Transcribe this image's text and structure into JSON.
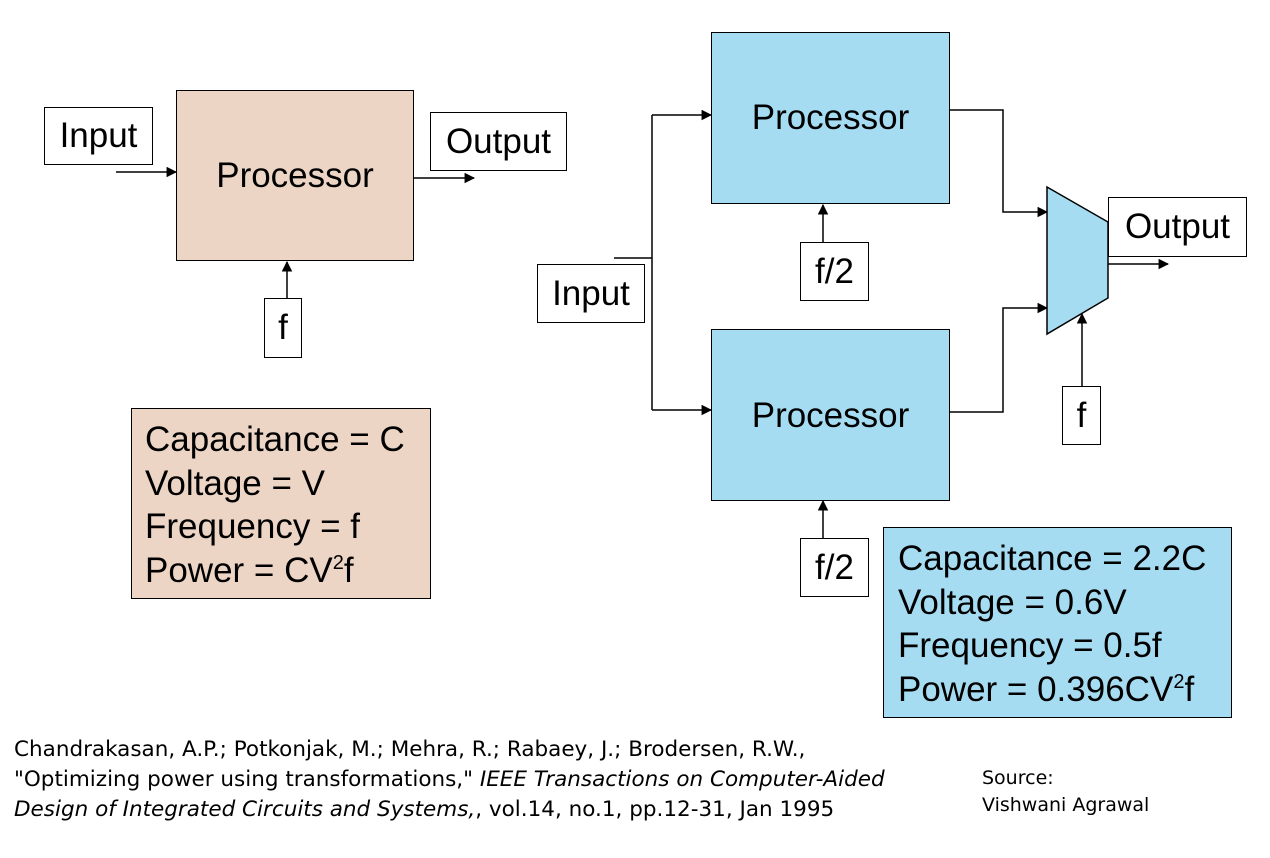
{
  "left": {
    "input_label": "Input",
    "processor_label": "Processor",
    "output_label": "Output",
    "clock_label": "f",
    "specs": {
      "capacitance": "Capacitance = C",
      "voltage": "Voltage = V",
      "frequency": "Frequency = f",
      "power_prefix": "Power = CV",
      "power_sup": "2",
      "power_suffix": "f"
    }
  },
  "right": {
    "input_label": "Input",
    "processor_top_label": "Processor",
    "processor_bottom_label": "Processor",
    "clock_top_label": "f/2",
    "clock_bottom_label": "f/2",
    "mux_clock_label": "f",
    "output_label": "Output",
    "specs": {
      "capacitance": "Capacitance = 2.2C",
      "voltage": "Voltage = 0.6V",
      "frequency": "Frequency = 0.5f",
      "power_prefix": "Power = 0.396CV",
      "power_sup": "2",
      "power_suffix": "f"
    }
  },
  "citation": {
    "line1": "Chandrakasan, A.P.; Potkonjak, M.; Mehra, R.; Rabaey, J.; Brodersen, R.W.,",
    "line2_plain": "\"Optimizing power using transformations,\" ",
    "line2_italic": "IEEE Transactions on Computer-Aided",
    "line3_italic": "Design of Integrated Circuits and Systems,",
    "line3_plain": ", vol.14, no.1, pp.12-31, Jan 1995"
  },
  "source": {
    "line1": "Source:",
    "line2": "Vishwani Agrawal"
  },
  "colors": {
    "tan_fill": "#ecd5c5",
    "blue_fill": "#a6dcf2"
  }
}
